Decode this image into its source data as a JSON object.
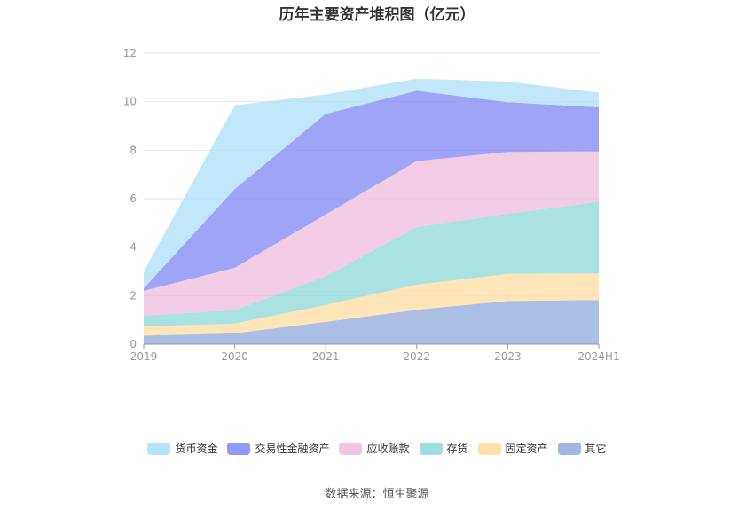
{
  "chart_data": {
    "type": "area",
    "stacked": true,
    "title": "历年主要资产堆积图（亿元）",
    "categories": [
      "2019",
      "2020",
      "2021",
      "2022",
      "2023",
      "2024H1"
    ],
    "ylim": [
      0,
      12
    ],
    "yticks": [
      "0",
      "2",
      "4",
      "6",
      "8",
      "10",
      "12"
    ],
    "grid": true,
    "legend_position": "bottom",
    "series": [
      {
        "name": "其它",
        "color": "#8faadc",
        "values": [
          0.35,
          0.45,
          0.92,
          1.42,
          1.78,
          1.82
        ]
      },
      {
        "name": "固定资产",
        "color": "#ffdca0",
        "values": [
          0.38,
          0.4,
          0.7,
          1.03,
          1.12,
          1.1
        ]
      },
      {
        "name": "存货",
        "color": "#8ed8d8",
        "values": [
          0.45,
          0.55,
          1.18,
          2.38,
          2.48,
          2.95
        ]
      },
      {
        "name": "应收账款",
        "color": "#eebcdc",
        "values": [
          1.02,
          1.75,
          2.55,
          2.72,
          2.55,
          2.08
        ]
      },
      {
        "name": "交易性金融资产",
        "color": "#7f86f3",
        "values": [
          0.1,
          3.25,
          4.15,
          2.9,
          2.05,
          1.82
        ]
      },
      {
        "name": "货币资金",
        "color": "#abdff8",
        "values": [
          0.7,
          3.45,
          0.8,
          0.5,
          0.85,
          0.6
        ]
      }
    ]
  },
  "source_text": "数据来源：恒生聚源"
}
